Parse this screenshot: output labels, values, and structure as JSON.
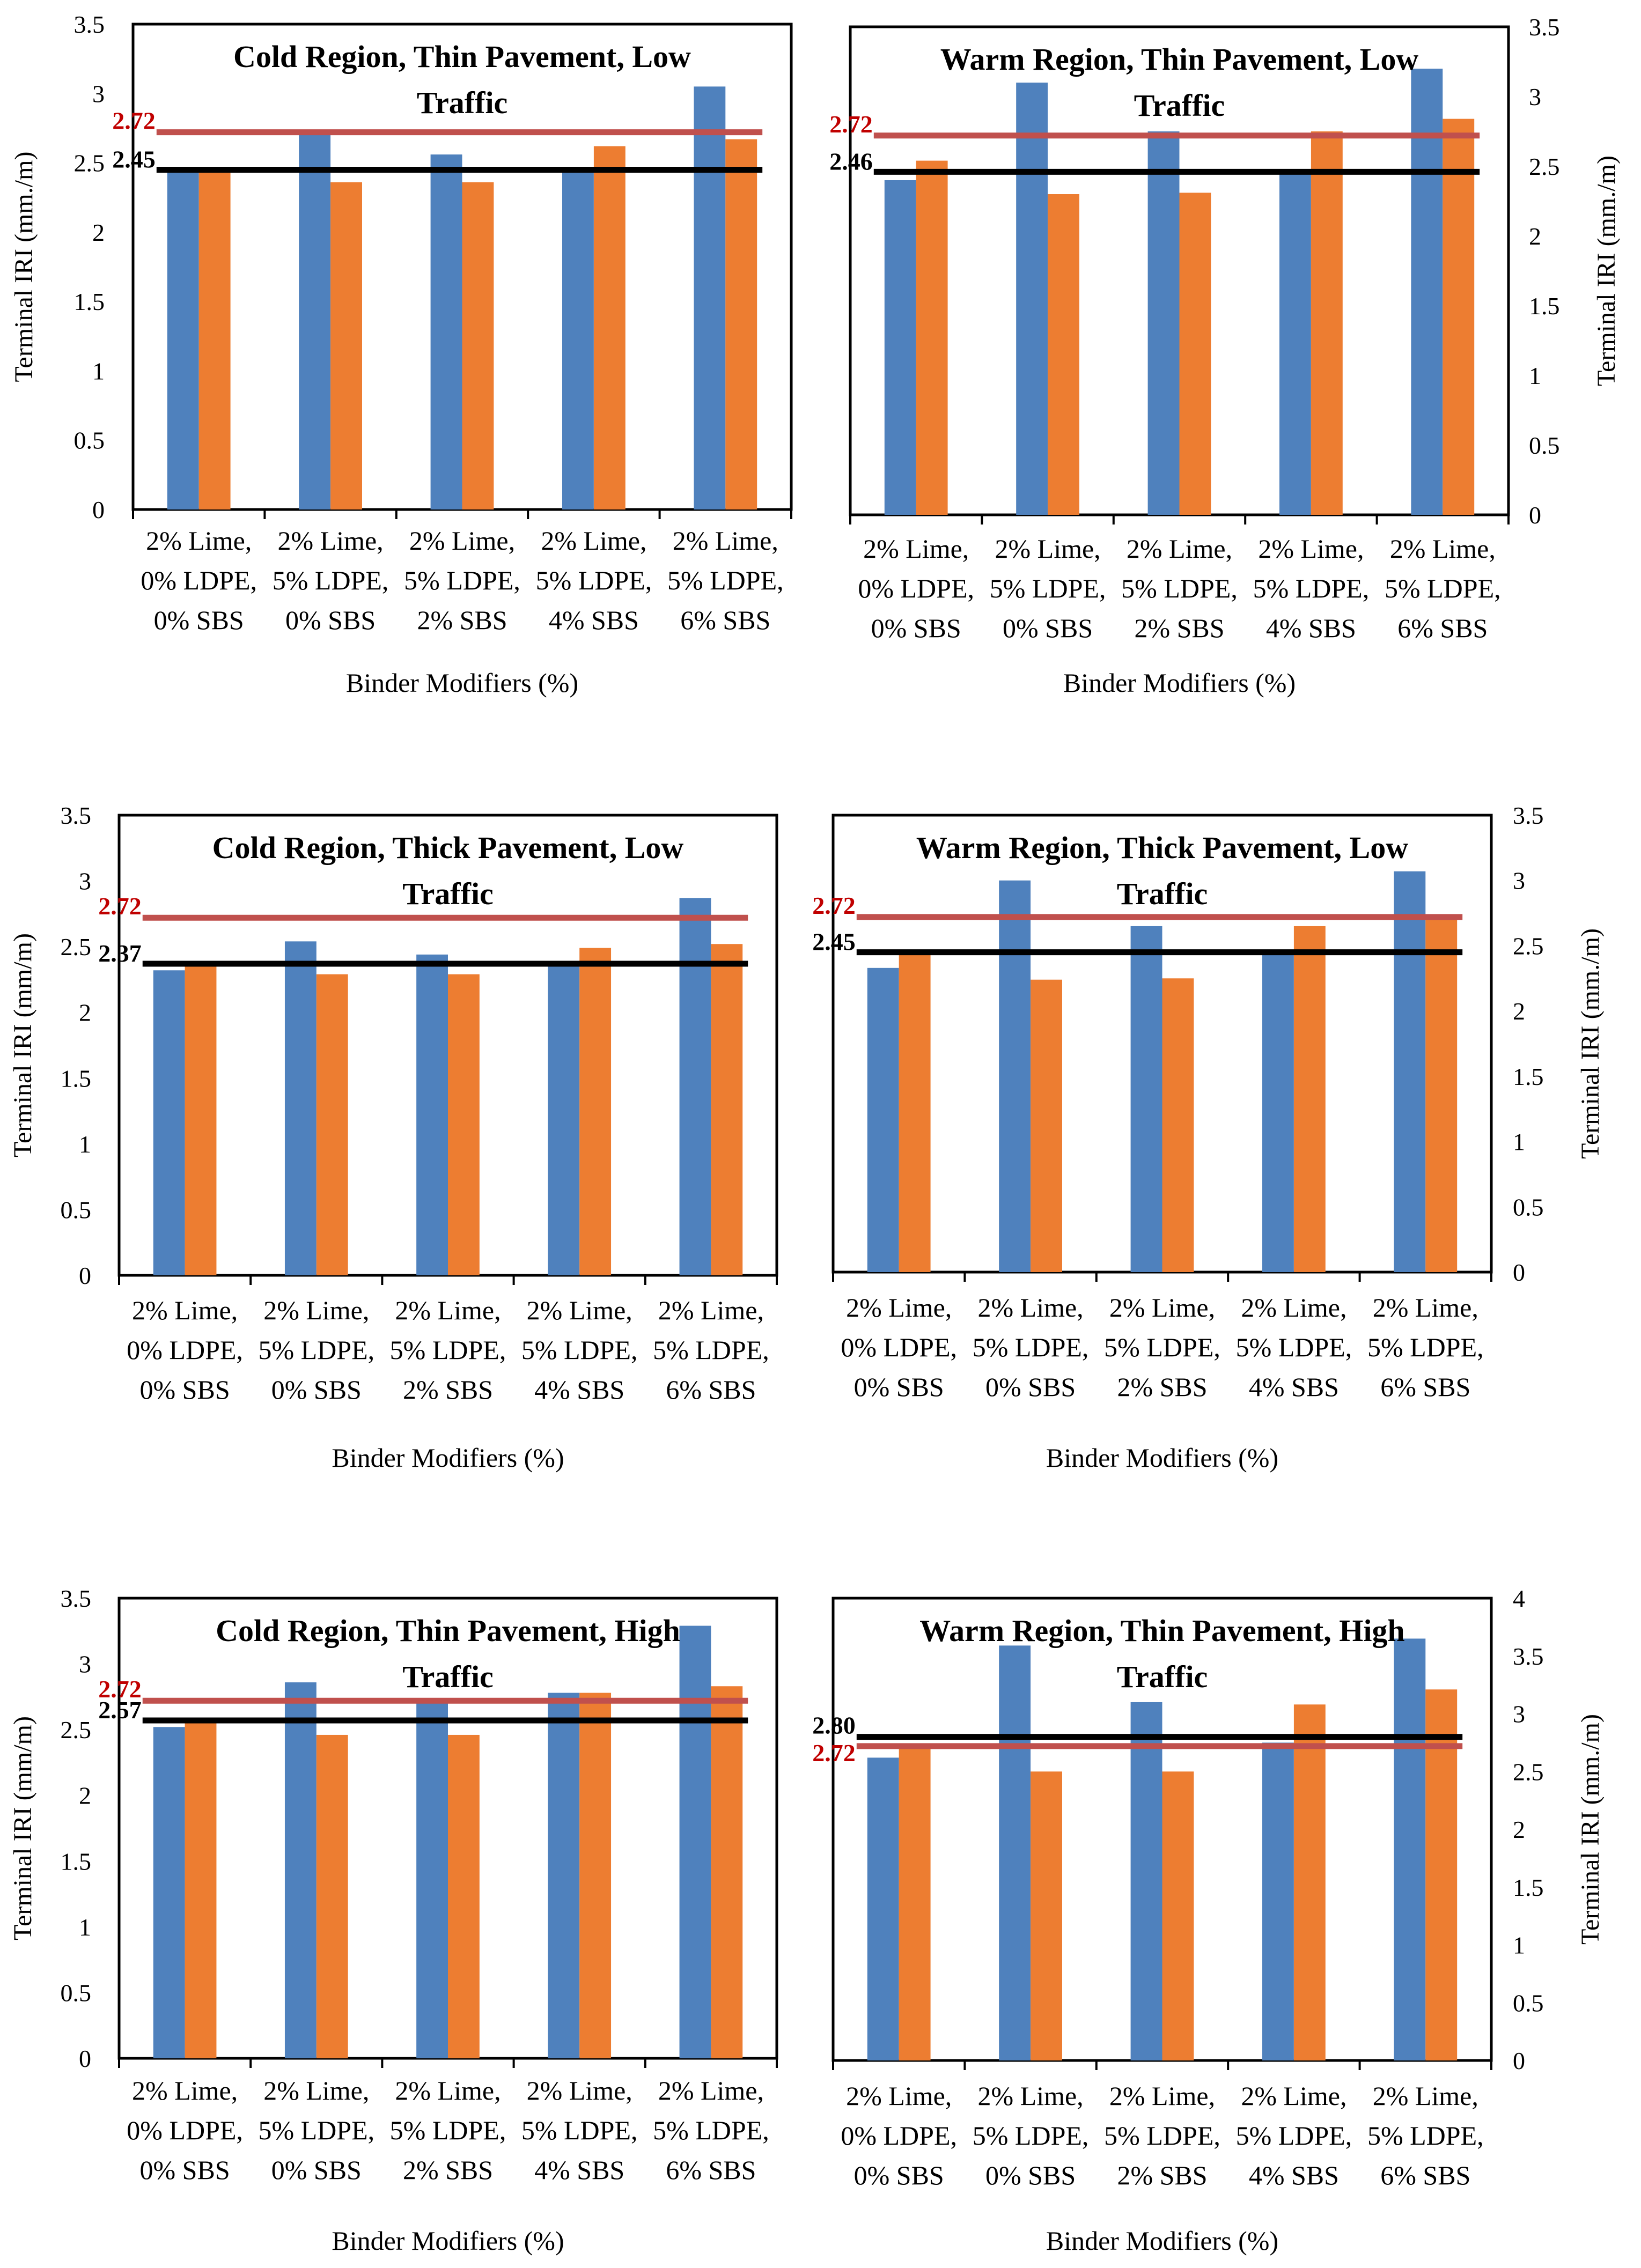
{
  "colors": {
    "blue": "#4F81BD",
    "orange": "#ED7D31",
    "red_line": "#C0504D",
    "red_label": "#C00000",
    "black_line": "#000000"
  },
  "shared": {
    "categories": [
      [
        "2% Lime,",
        "0% LDPE,",
        "0% SBS"
      ],
      [
        "2% Lime,",
        "5% LDPE,",
        "0% SBS"
      ],
      [
        "2% Lime,",
        "5% LDPE,",
        "2% SBS"
      ],
      [
        "2% Lime,",
        "5% LDPE,",
        "4% SBS"
      ],
      [
        "2% Lime,",
        "5% LDPE,",
        "6% SBS"
      ]
    ],
    "xlabel": "Binder Modifiers (%)"
  },
  "chart_data": [
    {
      "type": "bar",
      "title": [
        "Cold Region, Thin Pavement, Low",
        "Traffic"
      ],
      "ylabel": "Terminal IRI (mm./m)",
      "ylim": [
        0,
        3.5
      ],
      "yticks": [
        "0",
        "0.5",
        "1",
        "1.5",
        "2",
        "2.5",
        "3",
        "3.5"
      ],
      "series": [
        {
          "name": "blue",
          "values": [
            2.45,
            2.73,
            2.56,
            2.45,
            3.05
          ]
        },
        {
          "name": "orange",
          "values": [
            2.45,
            2.36,
            2.36,
            2.62,
            2.67
          ]
        }
      ],
      "red_line": {
        "value": 2.72,
        "label": "2.72"
      },
      "black_line": {
        "value": 2.45,
        "label": "2.45"
      }
    },
    {
      "type": "bar",
      "title": [
        "Warm Region, Thin Pavement, Low",
        "Traffic"
      ],
      "ylabel": "Terminal IRI (mm./m)",
      "ylim": [
        0,
        3.5
      ],
      "yticks": [
        "0",
        "0.5",
        "1",
        "1.5",
        "2",
        "2.5",
        "3",
        "3.5"
      ],
      "series": [
        {
          "name": "blue",
          "values": [
            2.4,
            3.1,
            2.75,
            2.48,
            3.2
          ]
        },
        {
          "name": "orange",
          "values": [
            2.54,
            2.3,
            2.31,
            2.75,
            2.84
          ]
        }
      ],
      "red_line": {
        "value": 2.72,
        "label": "2.72"
      },
      "black_line": {
        "value": 2.46,
        "label": "2.46"
      }
    },
    {
      "type": "bar",
      "title": [
        "Cold Region, Thick Pavement, Low",
        "Traffic"
      ],
      "ylabel": "Terminal IRI (mm/m)",
      "ylim": [
        0,
        3.5
      ],
      "yticks": [
        "0",
        "0.5",
        "1",
        "1.5",
        "2",
        "2.5",
        "3",
        "3.5"
      ],
      "series": [
        {
          "name": "blue",
          "values": [
            2.32,
            2.54,
            2.44,
            2.37,
            2.87
          ]
        },
        {
          "name": "orange",
          "values": [
            2.37,
            2.29,
            2.29,
            2.49,
            2.52
          ]
        }
      ],
      "red_line": {
        "value": 2.72,
        "label": "2.72"
      },
      "black_line": {
        "value": 2.37,
        "label": "2.37"
      }
    },
    {
      "type": "bar",
      "title": [
        "Warm Region, Thick Pavement, Low",
        "Traffic"
      ],
      "ylabel": "Terminal IRI (mm./m)",
      "ylim": [
        0,
        3.5
      ],
      "yticks": [
        "0",
        "0.5",
        "1",
        "1.5",
        "2",
        "2.5",
        "3",
        "3.5"
      ],
      "series": [
        {
          "name": "blue",
          "values": [
            2.33,
            3.0,
            2.65,
            2.45,
            3.07
          ]
        },
        {
          "name": "orange",
          "values": [
            2.45,
            2.24,
            2.25,
            2.65,
            2.74
          ]
        }
      ],
      "red_line": {
        "value": 2.72,
        "label": "2.72"
      },
      "black_line": {
        "value": 2.45,
        "label": "2.45"
      }
    },
    {
      "type": "bar",
      "title": [
        "Cold Region, Thin Pavement, High",
        "Traffic"
      ],
      "ylabel": "Terminal IRI (mm/m)",
      "ylim": [
        0,
        3.5
      ],
      "yticks": [
        "0",
        "0.5",
        "1",
        "1.5",
        "2",
        "2.5",
        "3",
        "3.5"
      ],
      "series": [
        {
          "name": "blue",
          "values": [
            2.52,
            2.86,
            2.72,
            2.78,
            3.29
          ]
        },
        {
          "name": "orange",
          "values": [
            2.58,
            2.46,
            2.46,
            2.78,
            2.83
          ]
        }
      ],
      "red_line": {
        "value": 2.72,
        "label": "2.72"
      },
      "black_line": {
        "value": 2.57,
        "label": "2.57"
      }
    },
    {
      "type": "bar",
      "title": [
        "Warm Region, Thin Pavement, High",
        "Traffic"
      ],
      "ylabel": "Terminal IRI (mm./m)",
      "ylim": [
        0,
        4
      ],
      "yticks": [
        "0",
        "0.5",
        "1",
        "1.5",
        "2",
        "2.5",
        "3",
        "3.5",
        "4"
      ],
      "series": [
        {
          "name": "blue",
          "values": [
            2.62,
            3.59,
            3.1,
            2.75,
            3.65
          ]
        },
        {
          "name": "orange",
          "values": [
            2.72,
            2.5,
            2.5,
            3.08,
            3.21
          ]
        }
      ],
      "red_line": {
        "value": 2.72,
        "label": "2.72"
      },
      "black_line": {
        "value": 2.8,
        "label": "2.80"
      }
    }
  ]
}
